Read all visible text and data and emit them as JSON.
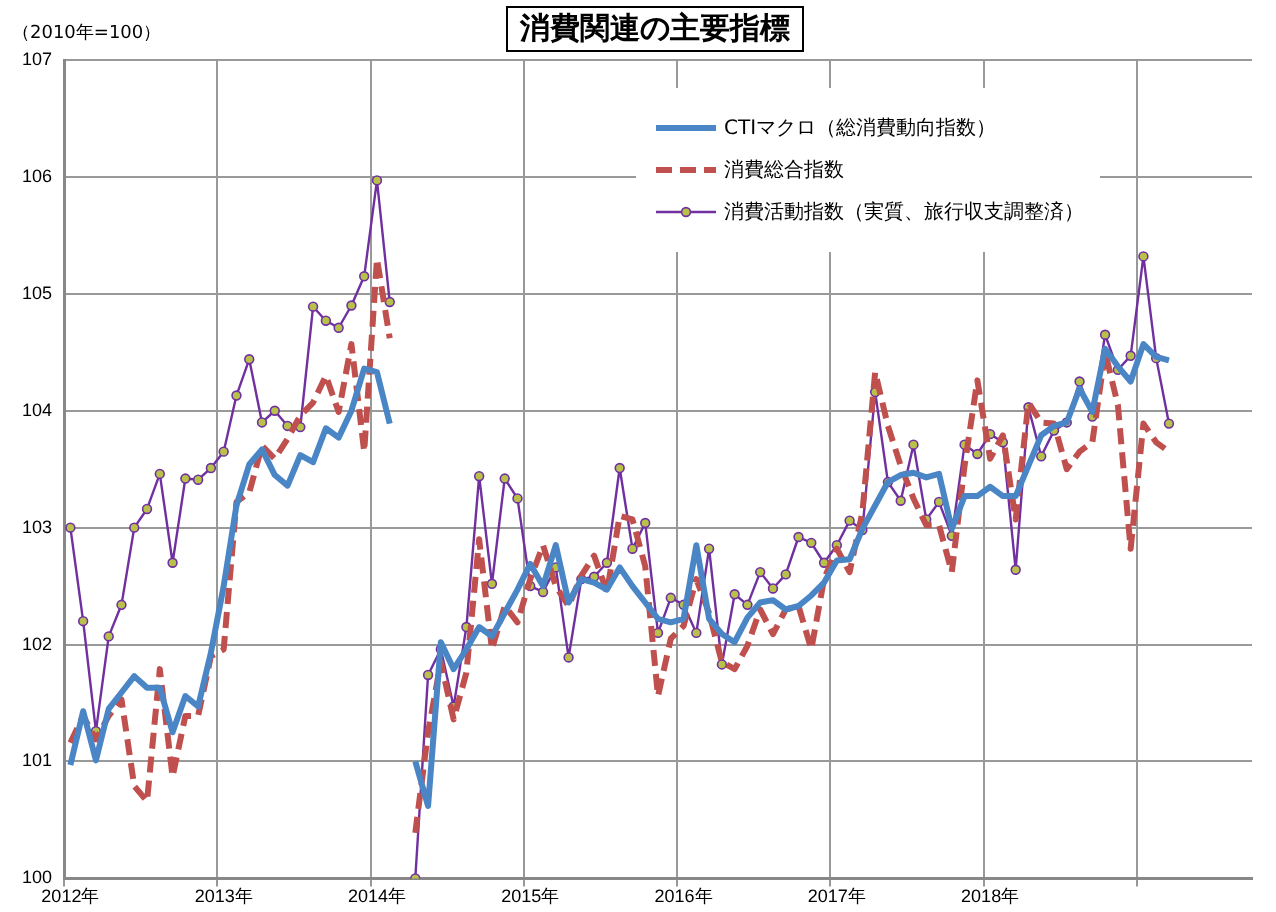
{
  "chart_data": {
    "type": "line",
    "title": "消費関連の主要指標",
    "ylabel": "（2010年=100）",
    "categories": [
      "2012年",
      null,
      null,
      null,
      null,
      null,
      null,
      null,
      null,
      null,
      null,
      null,
      "2013年",
      null,
      null,
      null,
      null,
      null,
      null,
      null,
      null,
      null,
      null,
      null,
      "2014年",
      null,
      null,
      null,
      null,
      null,
      null,
      null,
      null,
      null,
      null,
      null,
      "2015年",
      null,
      null,
      null,
      null,
      null,
      null,
      null,
      null,
      null,
      null,
      null,
      "2016年",
      null,
      null,
      null,
      null,
      null,
      null,
      null,
      null,
      null,
      null,
      null,
      "2017年",
      null,
      null,
      null,
      null,
      null,
      null,
      null,
      null,
      null,
      null,
      null,
      "2018年",
      null,
      null,
      null,
      null,
      null,
      null,
      null,
      null,
      null,
      null,
      null,
      null,
      null,
      null,
      null,
      null,
      null,
      null,
      null,
      null
    ],
    "ylim": [
      100,
      107
    ],
    "yticks": [
      100,
      101,
      102,
      103,
      104,
      105,
      106,
      107
    ],
    "grid": true,
    "legend": "top right",
    "series": [
      {
        "name": "CTIマクロ（総消費動向指数）",
        "color": "#4a86c5",
        "marker": "none",
        "line_style": "solid",
        "values": [
          100.97,
          101.43,
          101.01,
          101.45,
          101.59,
          101.73,
          101.63,
          101.63,
          101.25,
          101.56,
          101.47,
          101.93,
          102.5,
          103.19,
          103.54,
          103.67,
          103.45,
          103.36,
          103.62,
          103.56,
          103.85,
          103.77,
          104.0,
          104.36,
          104.33,
          103.89,
          null,
          101.0,
          100.62,
          102.02,
          101.79,
          101.96,
          102.15,
          102.07,
          102.27,
          102.47,
          102.69,
          102.5,
          102.85,
          102.36,
          102.56,
          102.53,
          102.47,
          102.66,
          102.5,
          102.36,
          102.22,
          102.19,
          102.22,
          102.85,
          102.22,
          102.09,
          102.02,
          102.23,
          102.36,
          102.38,
          102.3,
          102.33,
          102.42,
          102.53,
          102.72,
          102.73,
          102.99,
          103.19,
          103.39,
          103.45,
          103.47,
          103.43,
          103.46,
          102.99,
          103.27,
          103.27,
          103.35,
          103.27,
          103.27,
          103.53,
          103.79,
          103.87,
          103.9,
          104.19,
          103.99,
          104.53,
          104.38,
          104.25,
          104.57,
          104.46,
          104.43,
          null,
          null,
          null,
          null,
          null,
          null
        ]
      },
      {
        "name": "消費総合指数",
        "color": "#c0504d",
        "marker": "none",
        "line_style": "dashed",
        "values": [
          101.16,
          101.39,
          101.19,
          101.39,
          101.53,
          100.79,
          100.66,
          101.79,
          100.87,
          101.39,
          101.39,
          101.9,
          101.96,
          103.22,
          103.3,
          103.7,
          103.59,
          103.76,
          103.96,
          104.07,
          104.3,
          103.99,
          104.57,
          103.65,
          105.3,
          104.62,
          null,
          100.39,
          101.25,
          101.85,
          101.36,
          101.76,
          102.9,
          101.96,
          102.33,
          102.19,
          102.56,
          102.85,
          102.5,
          102.33,
          102.59,
          102.76,
          102.45,
          103.1,
          103.07,
          102.67,
          101.56,
          102.05,
          102.16,
          102.56,
          102.27,
          101.85,
          101.79,
          101.99,
          102.3,
          102.09,
          102.3,
          102.33,
          101.96,
          102.56,
          102.82,
          102.62,
          103.13,
          104.33,
          103.87,
          103.53,
          103.25,
          103.02,
          103.02,
          102.62,
          103.53,
          104.26,
          103.59,
          103.79,
          103.07,
          104.07,
          103.9,
          103.89,
          103.5,
          103.65,
          103.73,
          104.5,
          104.05,
          102.82,
          103.89,
          103.73,
          103.65,
          null,
          null,
          null,
          null,
          null,
          null
        ]
      },
      {
        "name": "消費活動指数（実質、旅行収支調整済）",
        "color": "#7030a0",
        "marker": "circle",
        "line_style": "solid",
        "values": [
          103.0,
          102.2,
          101.26,
          102.07,
          102.34,
          103.0,
          103.16,
          103.46,
          102.7,
          103.42,
          103.41,
          103.51,
          103.65,
          104.13,
          104.44,
          103.9,
          104.0,
          103.87,
          103.86,
          104.89,
          104.77,
          104.71,
          104.9,
          105.15,
          105.97,
          104.93,
          null,
          100.0,
          101.74,
          101.96,
          101.47,
          102.15,
          103.44,
          102.52,
          103.42,
          103.25,
          102.5,
          102.45,
          102.66,
          101.89,
          102.56,
          102.58,
          102.7,
          103.51,
          102.82,
          103.04,
          102.1,
          102.4,
          102.34,
          102.1,
          102.82,
          101.83,
          102.43,
          102.34,
          102.62,
          102.48,
          102.6,
          102.92,
          102.87,
          102.7,
          102.85,
          103.06,
          102.98,
          104.16,
          103.39,
          103.23,
          103.71,
          103.07,
          103.22,
          102.93,
          103.71,
          103.63,
          103.8,
          103.73,
          102.64,
          104.03,
          103.61,
          103.83,
          103.9,
          104.25,
          103.95,
          104.65,
          104.35,
          104.47,
          105.32,
          104.45,
          103.89,
          null,
          null,
          null,
          null,
          null,
          null
        ]
      }
    ]
  }
}
